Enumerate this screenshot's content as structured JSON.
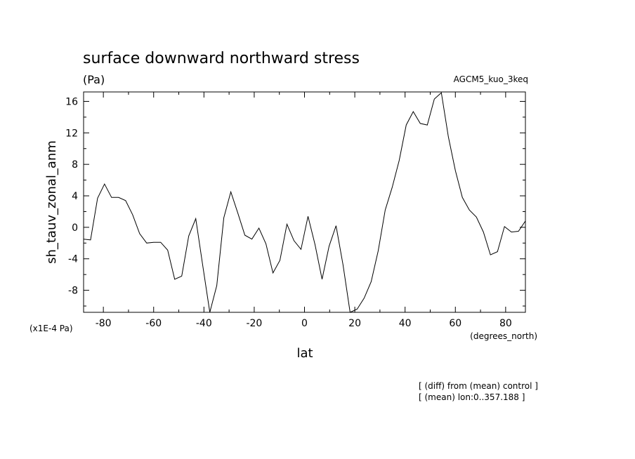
{
  "chart_data": {
    "type": "line",
    "title": "surface downward northward stress",
    "units_label": "(Pa)",
    "model_label": "AGCM5_kuo_3keq",
    "ylabel": "sh_tauv_zonal_anm",
    "xlabel": "lat",
    "x_units": "(degrees_north)",
    "y_scale_note": "(x1E-4 Pa)",
    "notes": [
      "[ (diff) from (mean) control ]",
      "[ (mean) lon:0..357.188 ]"
    ],
    "xlim": [
      -87.8638,
      87.8638
    ],
    "ylim": [
      17.2,
      -10.8
    ],
    "y_inverted": true,
    "x_ticks": [
      -80,
      -60,
      -40,
      -20,
      0,
      20,
      40,
      60,
      80
    ],
    "x_tick_labels": [
      "-80",
      "-60",
      "-40",
      "-20",
      "0",
      "20",
      "40",
      "60",
      "80"
    ],
    "y_ticks": [
      -8,
      -4,
      0,
      4,
      8,
      12,
      16
    ],
    "y_tick_labels": [
      "-8",
      "-4",
      "0",
      "4",
      "8",
      "12",
      "16"
    ],
    "grid": false,
    "series": [
      {
        "x": [
          -87.8638,
          -85.0965,
          -82.3129,
          -79.5256,
          -76.7369,
          -73.9475,
          -71.1578,
          -68.3678,
          -65.5776,
          -62.7874,
          -59.997,
          -57.2066,
          -54.4162,
          -51.6257,
          -48.8352,
          -46.0447,
          -43.2542,
          -40.4636,
          -37.6731,
          -34.8825,
          -32.0919,
          -29.3014,
          -26.5108,
          -23.7202,
          -20.9296,
          -18.139,
          -15.3484,
          -12.5578,
          -9.7672,
          -6.9766,
          -4.186,
          -1.3953,
          1.3953,
          4.186,
          6.9766,
          9.7672,
          12.5578,
          15.3484,
          18.139,
          20.9296,
          23.7202,
          26.5108,
          29.3014,
          32.0919,
          34.8825,
          37.6731,
          40.4636,
          43.2542,
          46.0447,
          48.8352,
          51.6257,
          54.4162,
          57.2066,
          59.997,
          62.7874,
          65.5776,
          68.3678,
          71.1578,
          73.9475,
          76.7369,
          79.5256,
          82.3129,
          85.0965,
          87.8638
        ],
        "y": [
          -1.5,
          -1.6,
          3.7,
          5.5,
          3.8,
          3.8,
          3.4,
          1.6,
          -0.8,
          -2.0,
          -1.9,
          -1.9,
          -2.9,
          -6.6,
          -6.2,
          -1.1,
          1.1,
          -4.9,
          -10.8,
          -7.4,
          1.2,
          4.5,
          1.8,
          -1.0,
          -1.5,
          -0.1,
          -2.1,
          -5.8,
          -4.2,
          0.4,
          -1.7,
          -2.8,
          1.4,
          -2.2,
          -6.6,
          -2.4,
          0.2,
          -4.8,
          -11.0,
          -10.4,
          -9.0,
          -6.9,
          -3.0,
          2.2,
          5.1,
          8.5,
          13.0,
          14.7,
          13.2,
          13.0,
          16.3,
          17.1,
          11.5,
          7.2,
          3.8,
          2.2,
          1.3,
          -0.6,
          -3.5,
          -3.1,
          0.1,
          -0.6,
          -0.5,
          0.8
        ]
      }
    ]
  }
}
